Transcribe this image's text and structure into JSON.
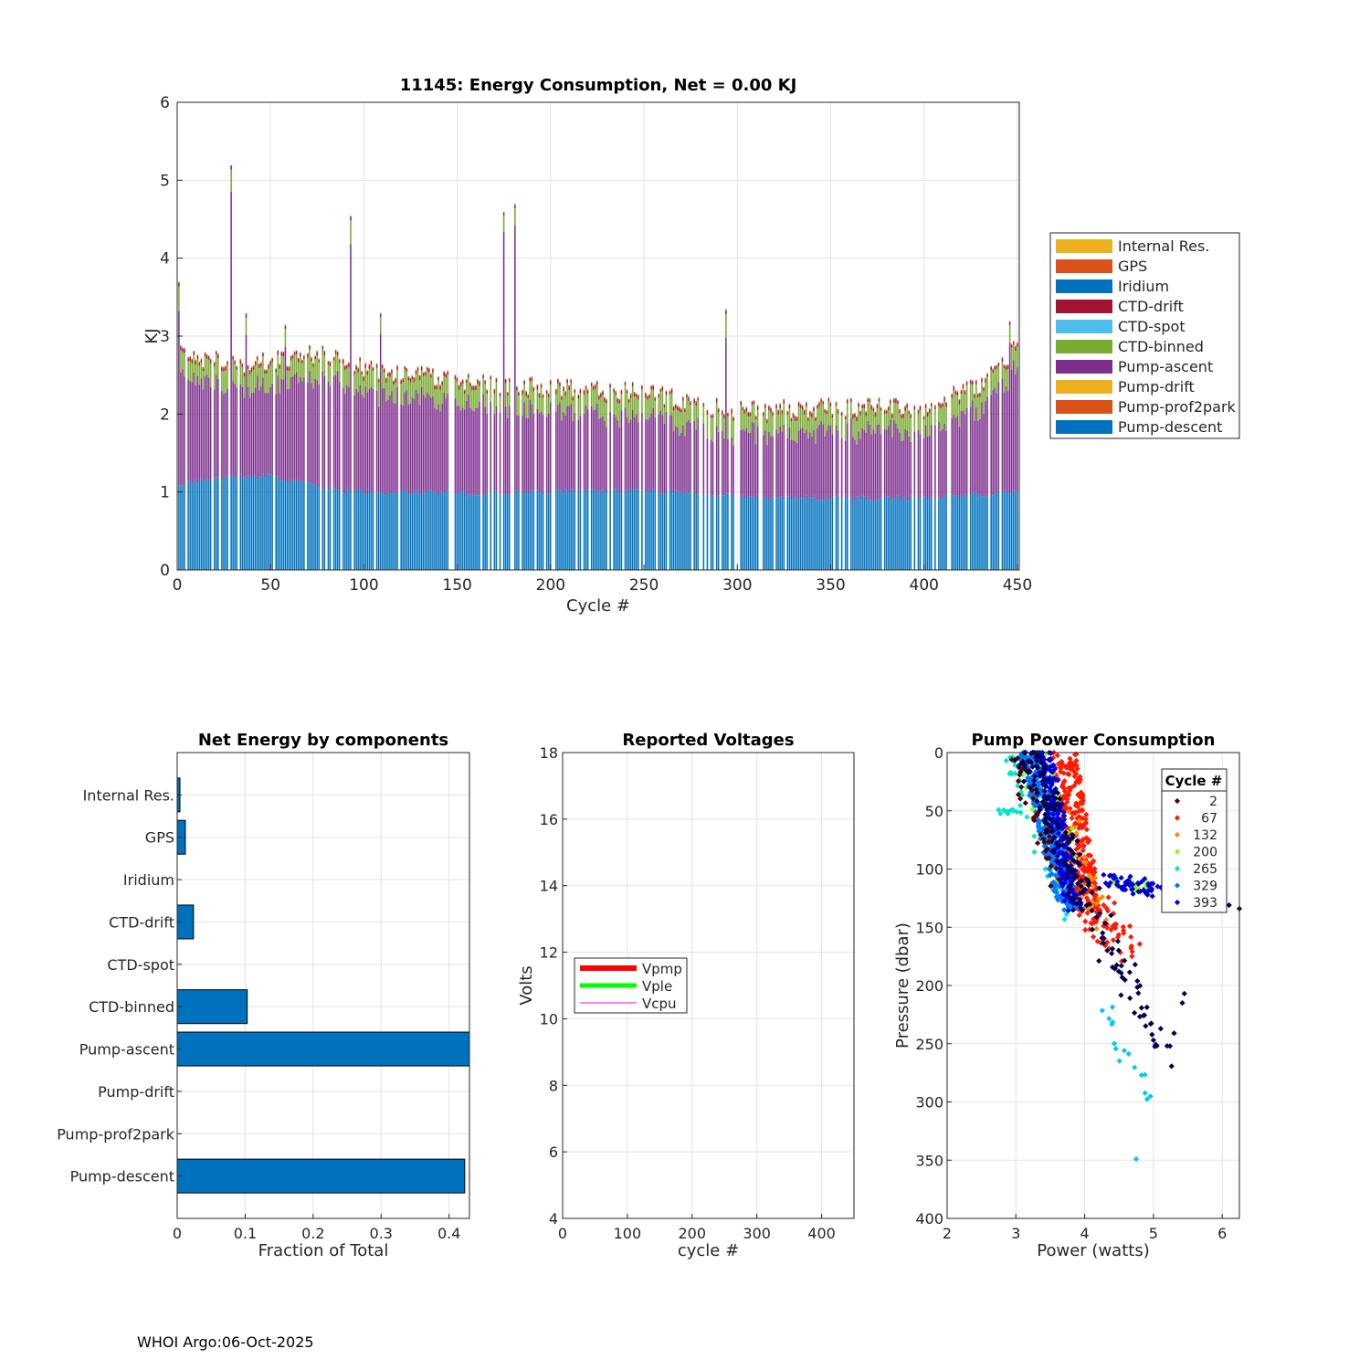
{
  "footer": "WHOI Argo:06-Oct-2025",
  "colors": {
    "internal_res": "#EDB120",
    "gps": "#D95319",
    "iridium": "#0072BD",
    "ctd_drift": "#A2142F",
    "ctd_spot": "#4DBEEE",
    "ctd_binned": "#77AC30",
    "pump_ascent": "#7E2F8E",
    "pump_drift": "#EDB120",
    "pump_prof2park": "#D95319",
    "pump_descent": "#0072BD",
    "vpmp": "#FF0000",
    "vple": "#00FF00",
    "vcpu": "#FF00FF"
  },
  "chart_data": [
    {
      "id": "energy",
      "type": "bar",
      "stacked": true,
      "title": "11145: Energy Consumption,  Net =   0.00 KJ",
      "xlabel": "Cycle #",
      "ylabel": "KJ",
      "xlim": [
        0,
        451
      ],
      "ylim": [
        0,
        6
      ],
      "xticks": [
        0,
        50,
        100,
        150,
        200,
        250,
        300,
        350,
        400,
        450
      ],
      "yticks": [
        0,
        1,
        2,
        3,
        4,
        5,
        6
      ],
      "grid": true,
      "legend_position": "outside-right",
      "legend": [
        "Internal Res.",
        "GPS",
        "Iridium",
        "CTD-drift",
        "CTD-spot",
        "CTD-binned",
        "Pump-ascent",
        "Pump-drift",
        "Pump-prof2park",
        "Pump-descent"
      ],
      "series_approx": {
        "pump_descent_level": [
          [
            0,
            1.1
          ],
          [
            30,
            1.2
          ],
          [
            50,
            1.2
          ],
          [
            80,
            1.05
          ],
          [
            100,
            1.0
          ],
          [
            150,
            0.98
          ],
          [
            200,
            1.0
          ],
          [
            250,
            1.02
          ],
          [
            300,
            0.95
          ],
          [
            320,
            0.92
          ],
          [
            400,
            0.92
          ],
          [
            450,
            1.0
          ]
        ],
        "total_level": [
          [
            0,
            2.8
          ],
          [
            30,
            2.65
          ],
          [
            50,
            2.7
          ],
          [
            80,
            2.8
          ],
          [
            100,
            2.6
          ],
          [
            150,
            2.45
          ],
          [
            200,
            2.35
          ],
          [
            250,
            2.3
          ],
          [
            300,
            2.05
          ],
          [
            350,
            2.1
          ],
          [
            400,
            2.1
          ],
          [
            430,
            2.4
          ],
          [
            451,
            2.9
          ]
        ],
        "spikes": [
          {
            "cycle": 1,
            "value": 3.7
          },
          {
            "cycle": 29,
            "value": 5.2
          },
          {
            "cycle": 37,
            "value": 3.3
          },
          {
            "cycle": 58,
            "value": 3.15
          },
          {
            "cycle": 93,
            "value": 4.55
          },
          {
            "cycle": 109,
            "value": 3.3
          },
          {
            "cycle": 175,
            "value": 4.6
          },
          {
            "cycle": 181,
            "value": 4.7
          },
          {
            "cycle": 294,
            "value": 3.35
          },
          {
            "cycle": 446,
            "value": 3.2
          }
        ]
      }
    },
    {
      "id": "components",
      "type": "bar",
      "orientation": "horizontal",
      "title": "Net Energy by components",
      "xlabel": "Fraction of Total",
      "xlim": [
        0,
        0.43
      ],
      "xticks": [
        0,
        0.1,
        0.2,
        0.3,
        0.4
      ],
      "xtick_labels": [
        "0",
        "0.1",
        "0.2",
        "0.3",
        "0.4"
      ],
      "grid": true,
      "categories": [
        "Internal Res.",
        "GPS",
        "Iridium",
        "CTD-drift",
        "CTD-spot",
        "CTD-binned",
        "Pump-ascent",
        "Pump-drift",
        "Pump-prof2park",
        "Pump-descent"
      ],
      "values": [
        0.004,
        0.012,
        0,
        0.024,
        0,
        0.103,
        0.43,
        0,
        0,
        0.423
      ]
    },
    {
      "id": "voltages",
      "type": "line",
      "title": "Reported Voltages",
      "xlabel": "cycle #",
      "ylabel": "Volts",
      "xlim": [
        0,
        450
      ],
      "ylim": [
        4,
        18
      ],
      "xticks": [
        0,
        100,
        200,
        300,
        400
      ],
      "yticks": [
        4,
        6,
        8,
        10,
        12,
        14,
        16,
        18
      ],
      "grid": true,
      "legend_position": "left-middle",
      "series": [
        {
          "name": "Vpmp",
          "values": []
        },
        {
          "name": "Vple",
          "values": []
        },
        {
          "name": "Vcpu",
          "values": []
        }
      ]
    },
    {
      "id": "pump_power",
      "type": "scatter",
      "title": "Pump Power Consumption",
      "xlabel": "Power (watts)",
      "ylabel": "Pressure (dbar)",
      "xlim": [
        2,
        6.25
      ],
      "ylim": [
        0,
        400
      ],
      "y_reversed": true,
      "xticks": [
        2,
        3,
        4,
        5,
        6
      ],
      "yticks": [
        0,
        50,
        100,
        150,
        200,
        250,
        300,
        350,
        400
      ],
      "grid": true,
      "legend_title": "Cycle #",
      "legend_position": "top-right",
      "legend": [
        {
          "label": "2",
          "color": "#5a0000"
        },
        {
          "label": "67",
          "color": "#ff1a00"
        },
        {
          "label": "132",
          "color": "#ff8c00"
        },
        {
          "label": "200",
          "color": "#8cff00"
        },
        {
          "label": "265",
          "color": "#00e6c8"
        },
        {
          "label": "329",
          "color": "#0078ff"
        },
        {
          "label": "393",
          "color": "#0000dc"
        }
      ],
      "clusters": [
        {
          "color": "#ff1a00",
          "count": 260,
          "p0": [
            3.7,
            0
          ],
          "p1": [
            4.05,
            135
          ],
          "spread": [
            0.18,
            6
          ]
        },
        {
          "color": "#ff1a00",
          "count": 60,
          "p0": [
            3.9,
            120
          ],
          "p1": [
            4.7,
            175
          ],
          "spread": [
            0.25,
            12
          ]
        },
        {
          "color": "#ff8c00",
          "count": 40,
          "p0": [
            3.7,
            60
          ],
          "p1": [
            4.2,
            145
          ],
          "spread": [
            0.2,
            10
          ]
        },
        {
          "color": "#8cff00",
          "count": 50,
          "p0": [
            3.2,
            0
          ],
          "p1": [
            3.9,
            130
          ],
          "spread": [
            0.25,
            8
          ]
        },
        {
          "color": "#8cff00",
          "count": 25,
          "p0": [
            4.4,
            110
          ],
          "p1": [
            5.3,
            120
          ],
          "spread": [
            0.2,
            5
          ]
        },
        {
          "color": "#00e6c8",
          "count": 45,
          "p0": [
            2.9,
            0
          ],
          "p1": [
            3.8,
            140
          ],
          "spread": [
            0.15,
            10
          ]
        },
        {
          "color": "#00e6c8",
          "count": 12,
          "p0": [
            2.75,
            50
          ],
          "p1": [
            3.05,
            52
          ],
          "spread": [
            0.08,
            2
          ]
        },
        {
          "color": "#00c8ff",
          "count": 16,
          "p0": [
            4.1,
            205
          ],
          "p1": [
            4.9,
            290
          ],
          "spread": [
            0.12,
            12
          ]
        },
        {
          "color": "#0078ff",
          "count": 320,
          "p0": [
            3.2,
            0
          ],
          "p1": [
            3.75,
            130
          ],
          "spread": [
            0.15,
            6
          ]
        },
        {
          "color": "#0000dc",
          "count": 200,
          "p0": [
            3.4,
            0
          ],
          "p1": [
            3.85,
            130
          ],
          "spread": [
            0.12,
            6
          ]
        },
        {
          "color": "#0000dc",
          "count": 50,
          "p0": [
            4.4,
            110
          ],
          "p1": [
            5.0,
            118
          ],
          "spread": [
            0.2,
            6
          ]
        },
        {
          "color": "#000050",
          "count": 140,
          "p0": [
            3.15,
            0
          ],
          "p1": [
            4.0,
            130
          ],
          "spread": [
            0.2,
            8
          ]
        },
        {
          "color": "#000050",
          "count": 55,
          "p0": [
            3.9,
            110
          ],
          "p1": [
            5.2,
            260
          ],
          "spread": [
            0.2,
            15
          ]
        },
        {
          "color": "#5a0000",
          "count": 30,
          "p0": [
            2.95,
            0
          ],
          "p1": [
            3.6,
            110
          ],
          "spread": [
            0.12,
            8
          ]
        }
      ],
      "outliers": [
        {
          "x": 4.75,
          "y": 349,
          "color": "#00c8ff"
        },
        {
          "x": 5.45,
          "y": 207,
          "color": "#000050"
        },
        {
          "x": 5.42,
          "y": 215,
          "color": "#000050"
        },
        {
          "x": 6.25,
          "y": 134,
          "color": "#000050"
        },
        {
          "x": 6.1,
          "y": 131,
          "color": "#000050"
        },
        {
          "x": 5.3,
          "y": 241,
          "color": "#000050"
        },
        {
          "x": 5.0,
          "y": 247,
          "color": "#000050"
        }
      ]
    }
  ]
}
